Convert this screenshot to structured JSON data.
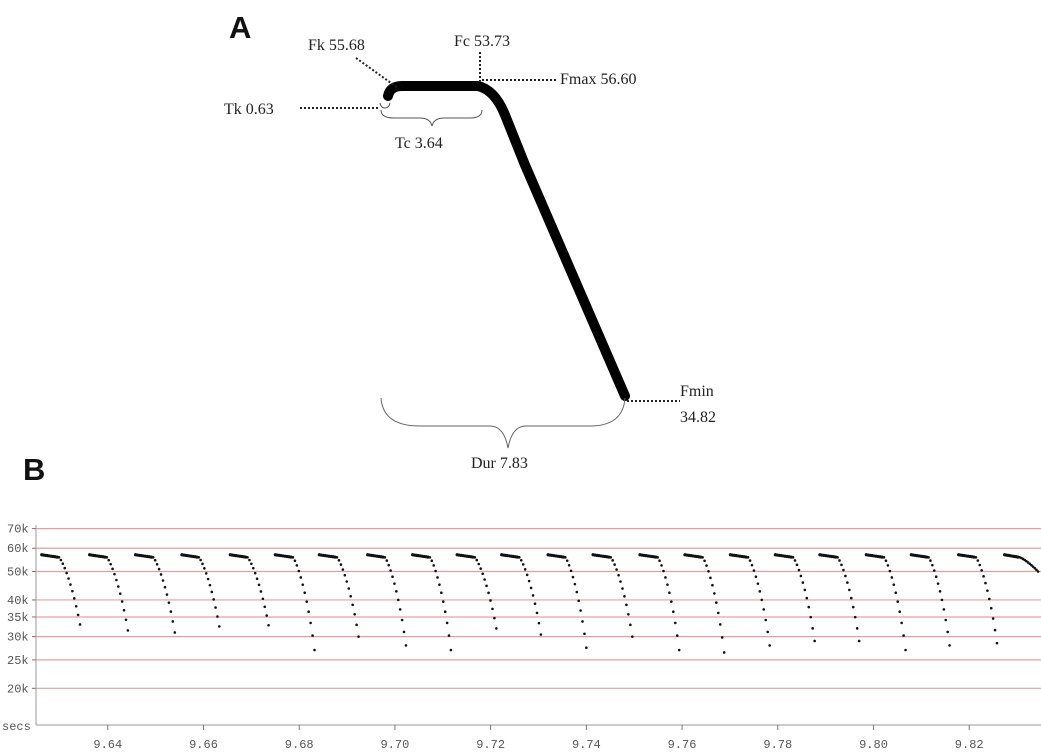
{
  "panel_a": {
    "letter": "A",
    "labels": {
      "fk": "Fk 55.68",
      "fc": "Fc 53.73",
      "fmax": "Fmax  56.60",
      "tk": "Tk 0.63",
      "tc": "Tc 3.64",
      "fmin_name": "Fmin",
      "fmin_value": "34.82",
      "dur": "Dur 7.83"
    }
  },
  "panel_b": {
    "letter": "B"
  },
  "chart_data": [
    {
      "type": "line",
      "description_free": true,
      "parameters": {
        "Fk": 55.68,
        "Fc": 53.73,
        "Fmax": 56.6,
        "Tk": 0.63,
        "Tc": 3.64,
        "Fmin": 34.82,
        "Dur": 7.83
      }
    },
    {
      "type": "scatter",
      "x_unit_label": "secs",
      "xlim": [
        9.625,
        9.835
      ],
      "ylim": [
        15000,
        72000
      ],
      "y_scale": "log",
      "gridlines_y": [
        70000,
        60000,
        50000,
        40000,
        35000,
        30000,
        25000,
        20000
      ],
      "y_tick_labels": [
        "70k",
        "60k",
        "50k",
        "40k",
        "35k",
        "30k",
        "25k",
        "20k"
      ],
      "x_tick_values": [
        9.64,
        9.66,
        9.68,
        9.7,
        9.72,
        9.74,
        9.76,
        9.78,
        9.8,
        9.82
      ],
      "x_tick_labels": [
        "9.64",
        "9.66",
        "9.68",
        "9.70",
        "9.72",
        "9.74",
        "9.76",
        "9.78",
        "9.80",
        "9.82"
      ],
      "grid_color": "#e3a0a0",
      "calls": [
        {
          "start": 9.6262,
          "duration": 0.008,
          "fmax": 57000,
          "fmin": 33000
        },
        {
          "start": 9.6362,
          "duration": 0.008,
          "fmax": 57000,
          "fmin": 31500
        },
        {
          "start": 9.6458,
          "duration": 0.0082,
          "fmax": 57000,
          "fmin": 31000
        },
        {
          "start": 9.6555,
          "duration": 0.0078,
          "fmax": 57000,
          "fmin": 32500
        },
        {
          "start": 9.6656,
          "duration": 0.008,
          "fmax": 57000,
          "fmin": 32800
        },
        {
          "start": 9.675,
          "duration": 0.0082,
          "fmax": 57000,
          "fmin": 27000
        },
        {
          "start": 9.6842,
          "duration": 0.0082,
          "fmax": 57000,
          "fmin": 30000
        },
        {
          "start": 9.6943,
          "duration": 0.008,
          "fmax": 57000,
          "fmin": 28000
        },
        {
          "start": 9.7037,
          "duration": 0.008,
          "fmax": 57000,
          "fmin": 27000
        },
        {
          "start": 9.713,
          "duration": 0.0082,
          "fmax": 57000,
          "fmin": 32000
        },
        {
          "start": 9.7223,
          "duration": 0.0082,
          "fmax": 57000,
          "fmin": 30500
        },
        {
          "start": 9.732,
          "duration": 0.008,
          "fmax": 57000,
          "fmin": 27500
        },
        {
          "start": 9.7414,
          "duration": 0.0082,
          "fmax": 57000,
          "fmin": 30000
        },
        {
          "start": 9.7512,
          "duration": 0.0082,
          "fmax": 57000,
          "fmin": 27000
        },
        {
          "start": 9.7606,
          "duration": 0.0082,
          "fmax": 57000,
          "fmin": 26500
        },
        {
          "start": 9.7701,
          "duration": 0.0082,
          "fmax": 57000,
          "fmin": 28000
        },
        {
          "start": 9.7795,
          "duration": 0.0082,
          "fmax": 57000,
          "fmin": 29000
        },
        {
          "start": 9.7888,
          "duration": 0.0082,
          "fmax": 57000,
          "fmin": 29000
        },
        {
          "start": 9.7985,
          "duration": 0.0082,
          "fmax": 57000,
          "fmin": 27000
        },
        {
          "start": 9.8079,
          "duration": 0.008,
          "fmax": 57000,
          "fmin": 28000
        },
        {
          "start": 9.8178,
          "duration": 0.008,
          "fmax": 57000,
          "fmin": 28500
        },
        {
          "start": 9.8274,
          "duration": 0.007,
          "fmax": 57000,
          "fmin": 50000
        }
      ]
    }
  ]
}
